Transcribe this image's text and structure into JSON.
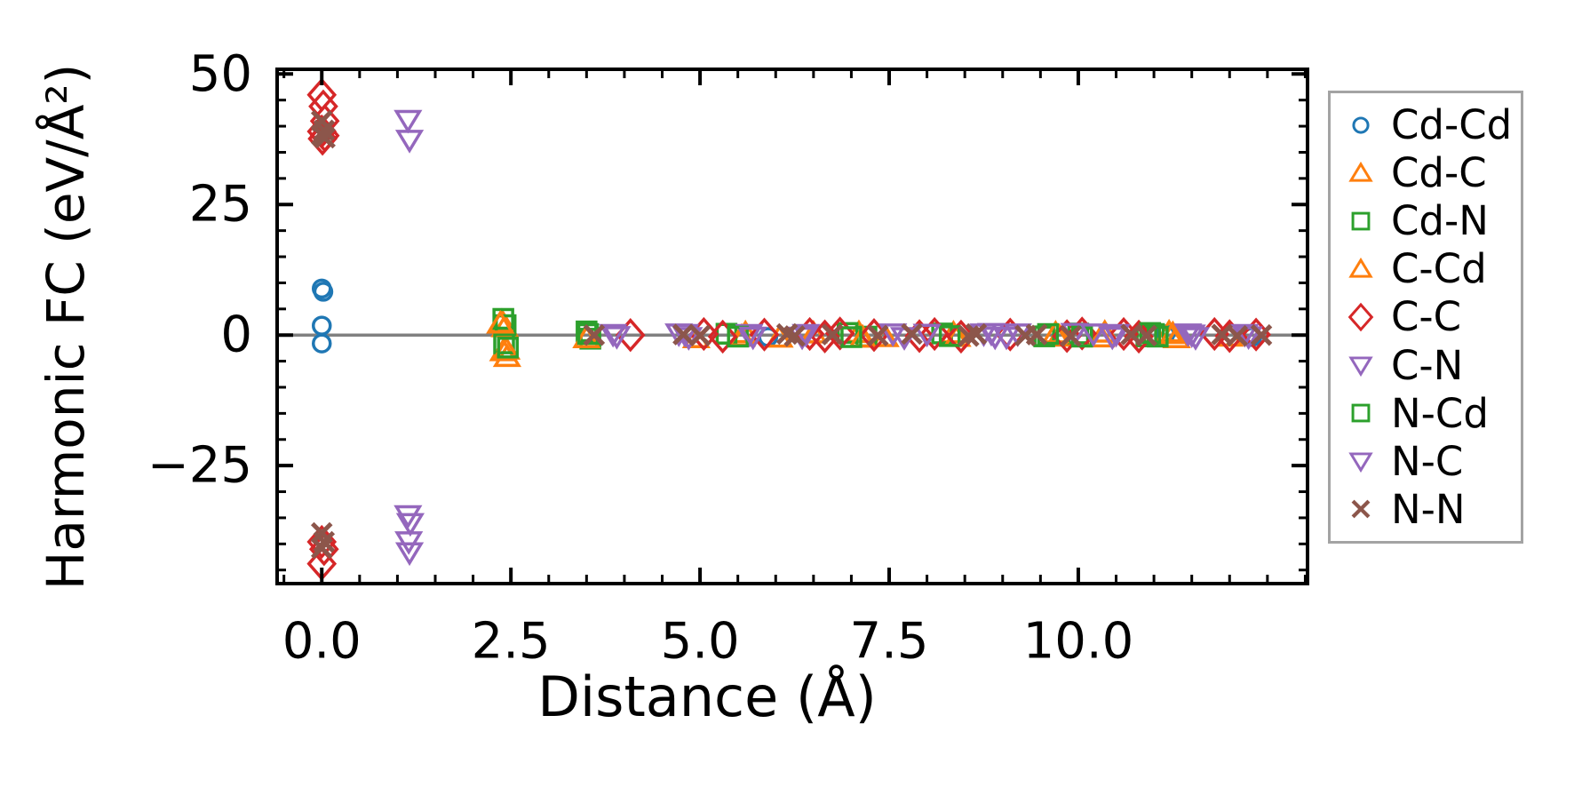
{
  "axes": {
    "xlabel": "Distance (Å)",
    "ylabel": "Harmonic FC (eV/Å²)"
  },
  "chart_data": {
    "type": "scatter",
    "title": "",
    "xlabel": "Distance (Å)",
    "ylabel": "Harmonic FC (eV/Å²)",
    "xlim": [
      -0.59,
      13.03
    ],
    "ylim": [
      -47.6,
      50.9
    ],
    "grid": false,
    "zero_line": {
      "y": 0,
      "color": "#808080"
    },
    "x_major_ticks": [
      0.0,
      2.5,
      5.0,
      7.5,
      10.0
    ],
    "x_tick_labels": [
      "0.0",
      "2.5",
      "5.0",
      "7.5",
      "10.0"
    ],
    "x_minor_step": 0.5,
    "y_major_ticks": [
      50,
      25,
      0,
      -25
    ],
    "y_tick_labels": [
      "50",
      "25",
      "0",
      "−25"
    ],
    "y_minor_step": 5,
    "legend_position": "outside-right",
    "legend_border_color": "#a3a3a3",
    "series": [
      {
        "name": "Cd-Cd",
        "marker": "circle",
        "color": "#1f77b4",
        "points": [
          [
            0.0,
            8.9
          ],
          [
            0.02,
            8.3
          ],
          [
            0.0,
            1.8
          ],
          [
            0.0,
            -1.6
          ],
          [
            5.9,
            -0.4
          ],
          [
            11.15,
            0.15
          ],
          [
            12.3,
            -0.35
          ]
        ]
      },
      {
        "name": "Cd-C",
        "marker": "triangle-up",
        "color": "#ff7f0e",
        "points": [
          [
            2.38,
            2.6
          ],
          [
            2.42,
            1.5
          ],
          [
            2.4,
            -3.1
          ],
          [
            2.45,
            -4.2
          ],
          [
            4.95,
            -0.6
          ],
          [
            5.6,
            0.35
          ],
          [
            6.05,
            -0.5
          ],
          [
            7.1,
            0.4
          ],
          [
            7.45,
            -0.4
          ],
          [
            8.35,
            0.3
          ],
          [
            9.75,
            -0.3
          ],
          [
            10.35,
            0.45
          ],
          [
            11.2,
            0.5
          ],
          [
            11.3,
            -0.6
          ]
        ]
      },
      {
        "name": "Cd-N",
        "marker": "square",
        "color": "#2ca02c",
        "points": [
          [
            2.4,
            3.1
          ],
          [
            2.43,
            1.9
          ],
          [
            2.41,
            -1.6
          ],
          [
            3.5,
            0.7
          ],
          [
            3.55,
            -0.7
          ],
          [
            5.35,
            0.25
          ],
          [
            6.95,
            0.4
          ],
          [
            7.2,
            -0.3
          ],
          [
            8.2,
            0.3
          ],
          [
            9.55,
            -0.25
          ],
          [
            10.0,
            0.3
          ],
          [
            10.9,
            -0.25
          ],
          [
            11.0,
            0.2
          ]
        ]
      },
      {
        "name": "C-Cd",
        "marker": "triangle-up",
        "color": "#ff7f0e",
        "points": [
          [
            2.36,
            2.2
          ],
          [
            2.44,
            -2.8
          ],
          [
            3.5,
            -0.6
          ],
          [
            5.55,
            -0.3
          ],
          [
            6.5,
            0.3
          ],
          [
            7.15,
            -0.5
          ],
          [
            8.4,
            -0.35
          ],
          [
            9.7,
            0.3
          ],
          [
            10.3,
            -0.45
          ],
          [
            11.25,
            0.2
          ],
          [
            12.0,
            -0.3
          ]
        ]
      },
      {
        "name": "C-C",
        "marker": "diamond",
        "color": "#d62728",
        "points": [
          [
            0.0,
            46.0
          ],
          [
            0.02,
            43.8
          ],
          [
            0.04,
            41.0
          ],
          [
            0.0,
            39.0
          ],
          [
            0.04,
            38.2
          ],
          [
            0.01,
            37.6
          ],
          [
            0.0,
            -39.6
          ],
          [
            0.03,
            -41.0
          ],
          [
            0.0,
            -43.8
          ],
          [
            4.08,
            0.0
          ],
          [
            5.05,
            0.2
          ],
          [
            5.3,
            -0.3
          ],
          [
            5.85,
            0.1
          ],
          [
            6.45,
            0.2
          ],
          [
            6.65,
            -0.25
          ],
          [
            6.85,
            0.3
          ],
          [
            7.3,
            0.0
          ],
          [
            7.9,
            -0.2
          ],
          [
            8.1,
            0.2
          ],
          [
            8.45,
            -0.3
          ],
          [
            9.1,
            0.1
          ],
          [
            9.85,
            -0.2
          ],
          [
            10.05,
            0.3
          ],
          [
            10.6,
            0.2
          ],
          [
            10.8,
            -0.3
          ],
          [
            11.8,
            0.2
          ],
          [
            12.0,
            -0.2
          ],
          [
            12.35,
            0.1
          ]
        ]
      },
      {
        "name": "C-N",
        "marker": "triangle-down",
        "color": "#9467bd",
        "points": [
          [
            1.14,
            41.2
          ],
          [
            1.14,
            -34.5
          ],
          [
            1.15,
            -39.5
          ],
          [
            3.85,
            0.2
          ],
          [
            4.72,
            0.3
          ],
          [
            4.85,
            -0.4
          ],
          [
            5.65,
            0.2
          ],
          [
            6.35,
            -0.3
          ],
          [
            7.55,
            0.3
          ],
          [
            7.7,
            -0.4
          ],
          [
            8.75,
            0.3
          ],
          [
            8.9,
            -0.3
          ],
          [
            9.95,
            0.4
          ],
          [
            10.45,
            -0.3
          ],
          [
            11.45,
            0.3
          ],
          [
            11.55,
            -0.4
          ],
          [
            12.2,
            0.2
          ]
        ]
      },
      {
        "name": "N-Cd",
        "marker": "square",
        "color": "#2ca02c",
        "points": [
          [
            2.46,
            -2.4
          ],
          [
            3.52,
            0.2
          ],
          [
            5.5,
            -0.3
          ],
          [
            7.0,
            -0.4
          ],
          [
            8.3,
            -0.2
          ],
          [
            9.6,
            0.2
          ],
          [
            10.05,
            -0.3
          ],
          [
            10.95,
            0.4
          ],
          [
            11.05,
            -0.3
          ]
        ]
      },
      {
        "name": "N-C",
        "marker": "triangle-down",
        "color": "#9467bd",
        "points": [
          [
            1.16,
            37.4
          ],
          [
            1.17,
            -36.0
          ],
          [
            1.16,
            -41.6
          ],
          [
            3.9,
            -0.2
          ],
          [
            4.8,
            0.2
          ],
          [
            5.7,
            -0.3
          ],
          [
            6.4,
            0.2
          ],
          [
            8.0,
            0.25
          ],
          [
            8.85,
            0.4
          ],
          [
            9.05,
            -0.3
          ],
          [
            9.2,
            0.3
          ],
          [
            10.2,
            0.3
          ],
          [
            10.5,
            0.2
          ],
          [
            11.5,
            0.1
          ],
          [
            12.25,
            -0.25
          ]
        ]
      },
      {
        "name": "N-N",
        "marker": "x",
        "color": "#8c564b",
        "points": [
          [
            0.0,
            41.0
          ],
          [
            0.03,
            39.2
          ],
          [
            0.0,
            38.3
          ],
          [
            0.04,
            37.8
          ],
          [
            0.0,
            -37.9
          ],
          [
            0.03,
            -39.6
          ],
          [
            0.0,
            -40.8
          ],
          [
            3.6,
            0.0
          ],
          [
            4.78,
            0.1
          ],
          [
            5.0,
            -0.1
          ],
          [
            6.15,
            0.2
          ],
          [
            6.25,
            -0.2
          ],
          [
            6.75,
            0.1
          ],
          [
            7.35,
            -0.1
          ],
          [
            7.8,
            0.2
          ],
          [
            8.55,
            -0.2
          ],
          [
            8.65,
            0.2
          ],
          [
            9.3,
            -0.1
          ],
          [
            9.45,
            0.1
          ],
          [
            9.9,
            -0.2
          ],
          [
            10.7,
            0.1
          ],
          [
            10.9,
            -0.1
          ],
          [
            11.9,
            0.1
          ],
          [
            12.1,
            -0.15
          ],
          [
            12.42,
            0.0
          ]
        ]
      }
    ]
  }
}
